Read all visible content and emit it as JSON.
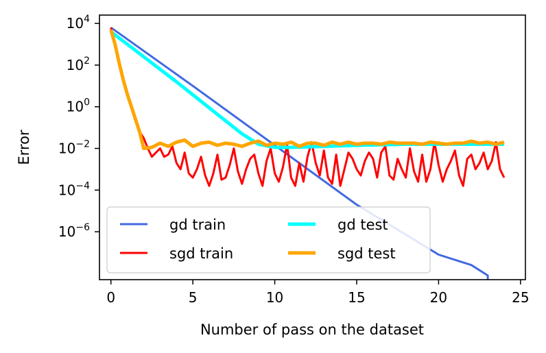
{
  "chart_data": {
    "type": "line",
    "xlabel": "Number of pass on the dataset",
    "ylabel": "Error",
    "xlim": [
      -0.7,
      25.3
    ],
    "ylim_log10": [
      -8.3,
      4.4
    ],
    "y_scale": "log",
    "x_ticks": [
      "0",
      "5",
      "10",
      "15",
      "20",
      "25"
    ],
    "x_tick_values": [
      0,
      5,
      10,
      15,
      20,
      25
    ],
    "y_ticks": [
      {
        "base": "10",
        "exp": "4",
        "value": 4
      },
      {
        "base": "10",
        "exp": "2",
        "value": 2
      },
      {
        "base": "10",
        "exp": "0",
        "value": 0
      },
      {
        "base": "10",
        "exp": "−2",
        "value": -2
      },
      {
        "base": "10",
        "exp": "−4",
        "value": -4
      },
      {
        "base": "10",
        "exp": "−6",
        "value": -6
      }
    ],
    "grid": false,
    "legend": {
      "placement": "lower-left",
      "columns": 2
    },
    "series": [
      {
        "name": "gd train",
        "color": "#4169e1",
        "x": [
          0,
          5,
          10,
          15,
          20,
          22,
          23,
          23
        ],
        "log10_y": [
          3.8,
          1.0,
          -1.85,
          -4.7,
          -7.1,
          -7.6,
          -8.1,
          -8.3
        ]
      },
      {
        "name": "sgd train",
        "color": "#ff0000",
        "x": [
          0,
          0.25,
          0.5,
          0.75,
          1.0,
          1.25,
          1.5,
          1.75,
          2.0,
          2.25,
          2.5,
          2.75,
          3.0,
          3.25,
          3.5,
          3.75,
          4.0,
          4.25,
          4.5,
          4.75,
          5.0,
          5.25,
          5.5,
          5.75,
          6.0,
          6.25,
          6.5,
          6.75,
          7.0,
          7.25,
          7.5,
          7.75,
          8.0,
          8.25,
          8.5,
          8.75,
          9.0,
          9.25,
          9.5,
          9.75,
          10.0,
          10.25,
          10.5,
          10.75,
          11.0,
          11.25,
          11.5,
          11.75,
          12.0,
          12.25,
          12.5,
          12.75,
          13.0,
          13.25,
          13.5,
          13.75,
          14.0,
          14.25,
          14.5,
          14.75,
          15.0,
          15.25,
          15.5,
          15.75,
          16.0,
          16.25,
          16.5,
          16.75,
          17.0,
          17.25,
          17.5,
          17.75,
          18.0,
          18.25,
          18.5,
          18.75,
          19.0,
          19.25,
          19.5,
          19.75,
          20.0,
          20.25,
          20.5,
          20.75,
          21.0,
          21.25,
          21.5,
          21.75,
          22.0,
          22.25,
          22.5,
          22.75,
          23.0,
          23.25,
          23.5,
          23.75,
          24.0
        ],
        "log10_y": [
          3.8,
          3.0,
          2.2,
          1.4,
          0.7,
          0.0,
          -0.7,
          -1.2,
          -1.5,
          -2.0,
          -2.4,
          -2.2,
          -2.0,
          -2.4,
          -2.3,
          -1.9,
          -2.7,
          -3.0,
          -2.2,
          -3.2,
          -3.4,
          -3.0,
          -2.4,
          -3.3,
          -3.8,
          -3.2,
          -2.3,
          -3.5,
          -3.4,
          -2.8,
          -2.0,
          -3.1,
          -3.7,
          -3.0,
          -2.5,
          -2.3,
          -3.2,
          -3.8,
          -2.6,
          -2.0,
          -3.2,
          -3.6,
          -2.9,
          -1.8,
          -3.4,
          -3.8,
          -2.7,
          -3.6,
          -2.4,
          -1.7,
          -2.7,
          -3.3,
          -2.1,
          -3.4,
          -3.7,
          -2.3,
          -3.8,
          -3.0,
          -2.2,
          -2.5,
          -3.0,
          -3.3,
          -2.6,
          -2.2,
          -2.5,
          -3.4,
          -2.2,
          -1.9,
          -3.3,
          -3.5,
          -2.5,
          -3.0,
          -3.4,
          -2.0,
          -3.1,
          -3.6,
          -2.3,
          -3.6,
          -3.0,
          -1.7,
          -2.8,
          -3.6,
          -3.0,
          -2.6,
          -2.1,
          -3.3,
          -3.8,
          -2.5,
          -2.3,
          -3.0,
          -2.7,
          -2.2,
          -3.0,
          -2.6,
          -1.7,
          -3.0,
          -3.4,
          -2.5
        ]
      },
      {
        "name": "gd test",
        "color": "#00ffff",
        "x": [
          0,
          2,
          4,
          6,
          8,
          9,
          10,
          11,
          13,
          15,
          18,
          21,
          24
        ],
        "log10_y": [
          3.6,
          2.4,
          1.2,
          -0.05,
          -1.3,
          -1.8,
          -1.95,
          -1.95,
          -1.9,
          -1.85,
          -1.8,
          -1.8,
          -1.8
        ]
      },
      {
        "name": "sgd test",
        "color": "#ffa500",
        "x": [
          0,
          0.25,
          0.5,
          0.75,
          1.0,
          1.25,
          1.5,
          1.75,
          2.0,
          2.5,
          3.0,
          3.5,
          4.0,
          4.5,
          5.0,
          5.5,
          6.0,
          6.5,
          7.0,
          7.5,
          8.0,
          8.5,
          9.0,
          9.5,
          10.0,
          10.5,
          11.0,
          11.5,
          12.0,
          12.5,
          13.0,
          13.5,
          14.0,
          14.5,
          15.0,
          15.5,
          16.0,
          16.5,
          17.0,
          17.5,
          18.0,
          18.5,
          19.0,
          19.5,
          20.0,
          20.5,
          21.0,
          21.5,
          22.0,
          22.5,
          23.0,
          23.5,
          24.0
        ],
        "log10_y": [
          3.7,
          3.0,
          2.1,
          1.3,
          0.6,
          0.0,
          -0.6,
          -1.2,
          -2.0,
          -1.95,
          -1.75,
          -1.9,
          -1.7,
          -1.6,
          -1.9,
          -1.75,
          -1.7,
          -1.85,
          -1.75,
          -1.8,
          -1.9,
          -1.75,
          -1.65,
          -1.85,
          -1.75,
          -1.8,
          -1.7,
          -1.9,
          -1.75,
          -1.75,
          -1.85,
          -1.7,
          -1.8,
          -1.7,
          -1.8,
          -1.75,
          -1.75,
          -1.8,
          -1.7,
          -1.75,
          -1.75,
          -1.75,
          -1.8,
          -1.7,
          -1.75,
          -1.8,
          -1.75,
          -1.75,
          -1.65,
          -1.75,
          -1.7,
          -1.8,
          -1.7
        ]
      }
    ]
  }
}
